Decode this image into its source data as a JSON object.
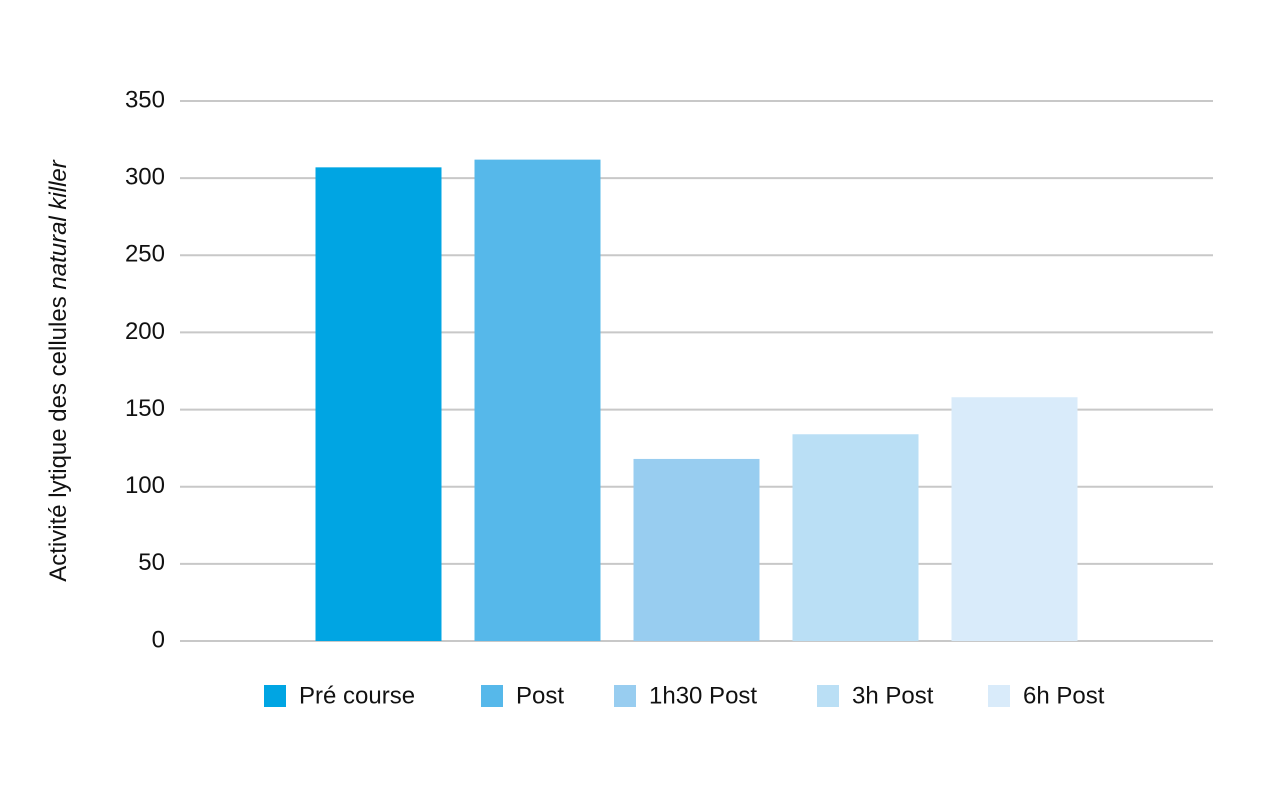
{
  "chart_data": {
    "type": "bar",
    "ylabel": "Activité lytique des cellules",
    "ylabel_italic": "natural killer",
    "categories": [
      null
    ],
    "series": [
      {
        "name": "Pré course",
        "color": "#00a5e3",
        "values": [
          307
        ]
      },
      {
        "name": "Post",
        "color": "#56b8ea",
        "values": [
          312
        ]
      },
      {
        "name": "1h30 Post",
        "color": "#98cdf0",
        "values": [
          118
        ]
      },
      {
        "name": "3h Post",
        "color": "#badff5",
        "values": [
          134
        ]
      },
      {
        "name": "6h Post",
        "color": "#d9ebfa",
        "values": [
          158
        ]
      }
    ],
    "ylim": [
      0,
      350
    ],
    "yticks": [
      0,
      50,
      100,
      150,
      200,
      250,
      300,
      350
    ],
    "grid": true,
    "legend": "bottom"
  }
}
